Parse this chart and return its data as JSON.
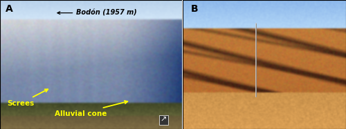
{
  "figsize": [
    5.0,
    1.87
  ],
  "dpi": 100,
  "panel_A_label": "A",
  "panel_B_label": "B",
  "bodon_text": "Bodón (1957 m)",
  "screes_label": "Screes",
  "alluvial_label": "Alluvial cone",
  "border_color": "#000000",
  "yellow": "#ffff00",
  "black": "#000000",
  "white": "#ffffff"
}
